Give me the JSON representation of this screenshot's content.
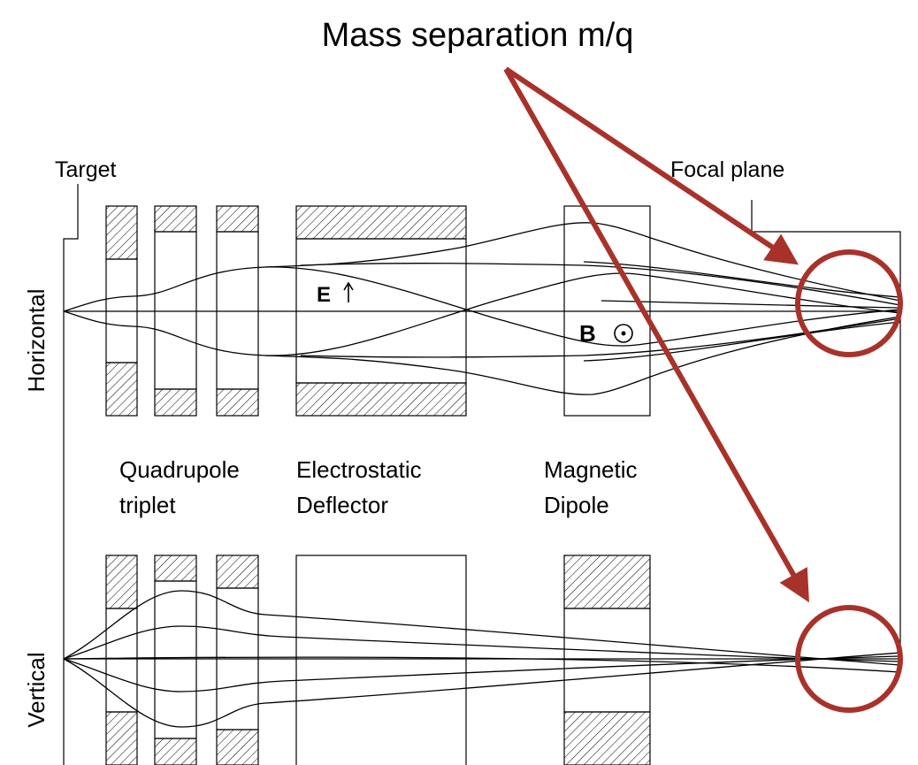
{
  "title": "Mass separation m/q",
  "labels": {
    "target": "Target",
    "focal_plane": "Focal plane"
  },
  "views": [
    "Horizontal",
    "Vertical"
  ],
  "fields": [
    "E",
    "B"
  ],
  "components": [
    {
      "lines": [
        "Quadrupole",
        "triplet"
      ]
    },
    {
      "lines": [
        "Electrostatic",
        "Deflector"
      ]
    },
    {
      "lines": [
        "Magnetic",
        "Dipole"
      ]
    }
  ]
}
